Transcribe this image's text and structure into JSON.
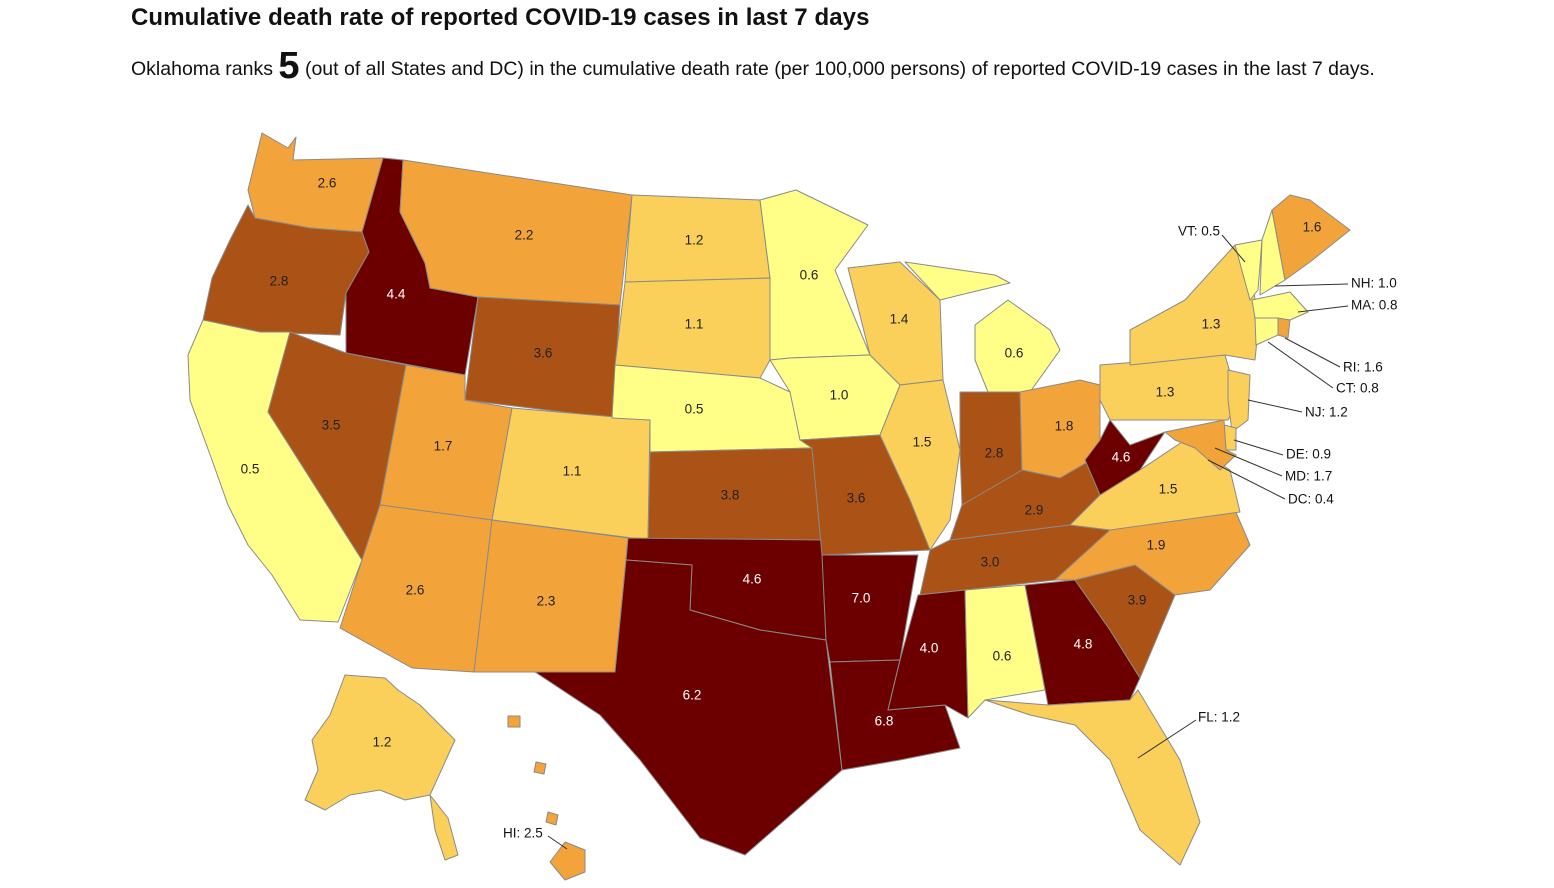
{
  "header": {
    "title": "Cumulative death rate of reported COVID-19 cases in last 7 days",
    "desc_before": "Oklahoma ranks ",
    "rank": "5",
    "desc_after": " (out of all States and DC) in the cumulative death rate (per 100,000 persons) of reported COVID-19 cases in the last 7 days."
  },
  "colors": {
    "bin1": "#ffff88",
    "bin2": "#fad05a",
    "bin3": "#f2a43a",
    "bin4": "#ab5316",
    "bin5": "#6c0000",
    "border": "#8a8a8a"
  },
  "states": [
    {
      "id": "WA",
      "label": "2.6"
    },
    {
      "id": "OR",
      "label": "2.8"
    },
    {
      "id": "CA",
      "label": "0.5"
    },
    {
      "id": "ID",
      "label": "4.4"
    },
    {
      "id": "NV",
      "label": "3.5"
    },
    {
      "id": "MT",
      "label": "2.2"
    },
    {
      "id": "WY",
      "label": "3.6"
    },
    {
      "id": "UT",
      "label": "1.7"
    },
    {
      "id": "AZ",
      "label": "2.6"
    },
    {
      "id": "CO",
      "label": "1.1"
    },
    {
      "id": "NM",
      "label": "2.3"
    },
    {
      "id": "ND",
      "label": "1.2"
    },
    {
      "id": "SD",
      "label": "1.1"
    },
    {
      "id": "NE",
      "label": "0.5"
    },
    {
      "id": "KS",
      "label": "3.8"
    },
    {
      "id": "OK",
      "label": "4.6"
    },
    {
      "id": "TX",
      "label": "6.2"
    },
    {
      "id": "MN",
      "label": "0.6"
    },
    {
      "id": "IA",
      "label": "1.0"
    },
    {
      "id": "MO",
      "label": "3.6"
    },
    {
      "id": "AR",
      "label": "7.0"
    },
    {
      "id": "LA",
      "label": "6.8"
    },
    {
      "id": "WI",
      "label": "1.4"
    },
    {
      "id": "IL",
      "label": "1.5"
    },
    {
      "id": "MI",
      "label": "0.6"
    },
    {
      "id": "IN",
      "label": "2.8"
    },
    {
      "id": "OH",
      "label": "1.8"
    },
    {
      "id": "KY",
      "label": "2.9"
    },
    {
      "id": "TN",
      "label": "3.0"
    },
    {
      "id": "MS",
      "label": "4.0"
    },
    {
      "id": "AL",
      "label": "0.6"
    },
    {
      "id": "GA",
      "label": "4.8"
    },
    {
      "id": "SC",
      "label": "3.9"
    },
    {
      "id": "NC",
      "label": "1.9"
    },
    {
      "id": "VA",
      "label": "1.5"
    },
    {
      "id": "WV",
      "label": "4.6"
    },
    {
      "id": "PA",
      "label": "1.3"
    },
    {
      "id": "NY",
      "label": "1.3"
    },
    {
      "id": "ME",
      "label": "1.6"
    },
    {
      "id": "AK",
      "label": "1.2"
    }
  ],
  "callouts": [
    {
      "id": "VT",
      "text": "VT: 0.5"
    },
    {
      "id": "NH",
      "text": "NH: 1.0"
    },
    {
      "id": "MA",
      "text": "MA: 0.8"
    },
    {
      "id": "RI",
      "text": "RI: 1.6"
    },
    {
      "id": "CT",
      "text": "CT: 0.8"
    },
    {
      "id": "NJ",
      "text": "NJ: 1.2"
    },
    {
      "id": "DE",
      "text": "DE: 0.9"
    },
    {
      "id": "MD",
      "text": "MD: 1.7"
    },
    {
      "id": "DC",
      "text": "DC: 0.4"
    },
    {
      "id": "FL",
      "text": "FL: 1.2"
    },
    {
      "id": "HI",
      "text": "HI: 2.5"
    }
  ]
}
